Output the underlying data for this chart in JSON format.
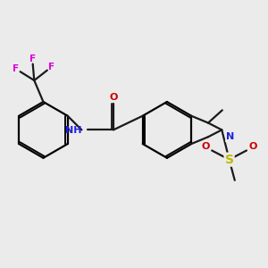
{
  "bg_color": "#ebebeb",
  "bond_color": "#1a1a1a",
  "N_color": "#2020dd",
  "O_color": "#cc0000",
  "S_color": "#bbbb00",
  "F_color": "#dd00dd",
  "lw": 1.6,
  "dbo": 0.048,
  "fs": 8.0,
  "r6": 0.68,
  "xlim": [
    0.3,
    6.8
  ],
  "ylim": [
    0.5,
    5.2
  ]
}
